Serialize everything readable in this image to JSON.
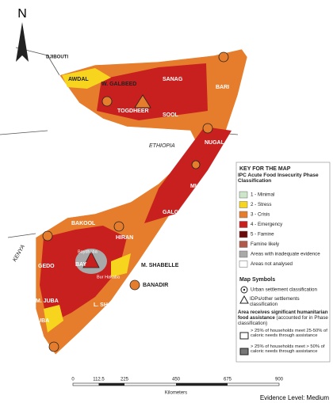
{
  "compass": "N",
  "map_labels": {
    "djibouti": "DJIBOUTI",
    "awdal": "AWDAL",
    "w_galbeed": "W. GALBEED",
    "sanag": "SANAG",
    "bari": "BARI",
    "togdheer": "TOGDHEER",
    "sool": "SOOL",
    "nugal": "NUGAL",
    "ethiopia": "ETHIOPIA",
    "mudug": "MUDUG",
    "galgadud": "GALGADUD",
    "bakool": "BAKOOL",
    "hiran": "HIRAN",
    "kenya": "KENYA",
    "gedo": "GEDO",
    "bay": "BAY",
    "baydhaba": "Baydhaba",
    "bur_hakaba": "Bur Hakaba",
    "m_shabelle": "M. SHABELLE",
    "banadir": "BANADIR",
    "l_shabelle": "L. SHABELLE",
    "m_juba": "M. JUBA",
    "l_juba": "L. JUBA"
  },
  "legend": {
    "title": "KEY FOR THE MAP",
    "subtitle": "IPC Acute Food Insecurity Phase Classification",
    "phases": [
      "1 - Minimal",
      "2 - Stress",
      "3 - Crisis",
      "4 - Emergency",
      "5 - Famine",
      "Famine likely",
      "Areas with inadequate evidence",
      "Areas not analysed"
    ],
    "symbols_title": "Map Symbols",
    "urban": "Urban settlement classification",
    "idp": "IDPs/other settlements classification",
    "assistance_title": "Area receives significant humanitarian food assistance",
    "assistance_note": "(accounted for in Phase classification)",
    "assistance_1": "> 25% of households meet 25-50% of caloric needs through assistance",
    "assistance_2": "> 25% of households meet > 50% of caloric needs through assistance"
  },
  "scale": {
    "ticks": [
      "0",
      "112.5",
      "225",
      "450",
      "675",
      "900"
    ],
    "unit": "Kilometers"
  },
  "evidence": "Evidence Level: Medium"
}
